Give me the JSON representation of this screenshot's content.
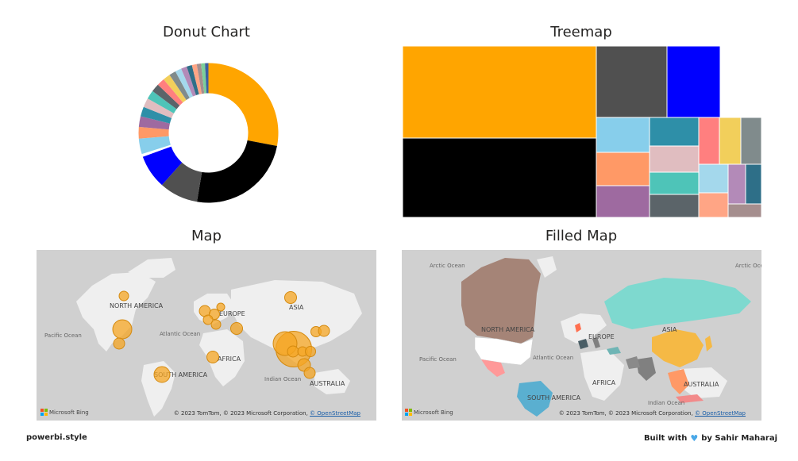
{
  "footer": {
    "left": "powerbi.style",
    "right_prefix": "Built with",
    "right_suffix": "by Sahir Maharaj"
  },
  "icons": {
    "heart": "blue-heart-icon",
    "bing": "microsoft-logo-icon"
  },
  "chart_data": [
    {
      "type": "pie",
      "title": "Donut Chart",
      "donut": true,
      "slices": [
        {
          "value": 25,
          "color": "#FFA500"
        },
        {
          "value": 22,
          "color": "#000000"
        },
        {
          "value": 8,
          "color": "#505050"
        },
        {
          "value": 7,
          "color": "#0000FF"
        },
        {
          "value": 0.6,
          "color": "#FFFFFF"
        },
        {
          "value": 3.2,
          "color": "#87CEEB"
        },
        {
          "value": 2.4,
          "color": "#FF9966"
        },
        {
          "value": 2.2,
          "color": "#9E6AA0"
        },
        {
          "value": 2.0,
          "color": "#2E8FA8"
        },
        {
          "value": 1.9,
          "color": "#E0BDC0"
        },
        {
          "value": 1.8,
          "color": "#4EC4B8"
        },
        {
          "value": 1.7,
          "color": "#5B6469"
        },
        {
          "value": 1.6,
          "color": "#FF7F7F"
        },
        {
          "value": 1.5,
          "color": "#F2CF5B"
        },
        {
          "value": 1.4,
          "color": "#808B8C"
        },
        {
          "value": 1.3,
          "color": "#A4D8EC"
        },
        {
          "value": 1.2,
          "color": "#B38AB8"
        },
        {
          "value": 1.1,
          "color": "#2E6F88"
        },
        {
          "value": 1.0,
          "color": "#FFA585"
        },
        {
          "value": 0.9,
          "color": "#A58E8E"
        },
        {
          "value": 0.8,
          "color": "#7CCF9A"
        },
        {
          "value": 0.7,
          "color": "#3E5F9F"
        }
      ]
    },
    {
      "type": "treemap",
      "title": "Treemap",
      "slices_ref": "same categories as donut chart",
      "values": [
        25,
        22,
        8,
        7,
        3.2,
        2.4,
        2.2,
        2.0,
        1.9,
        1.8,
        1.7,
        1.6,
        1.5,
        1.4,
        1.3,
        1.2,
        1.1,
        1.0,
        0.9
      ],
      "colors": [
        "#FFA500",
        "#000000",
        "#505050",
        "#0000FF",
        "#87CEEB",
        "#FF9966",
        "#9E6AA0",
        "#2E8FA8",
        "#E0BDC0",
        "#4EC4B8",
        "#5B6469",
        "#FF7F7F",
        "#F2CF5B",
        "#808B8C",
        "#A4D8EC",
        "#B38AB8",
        "#2E6F88",
        "#FFA585",
        "#A58E8E"
      ]
    },
    {
      "type": "map",
      "title": "Map",
      "labels": {
        "north_america": "NORTH AMERICA",
        "south_america": "SOUTH AMERICA",
        "europe": "EUROPE",
        "africa": "AFRICA",
        "asia": "ASIA",
        "australia": "AUSTRALIA",
        "pacific": "Pacific Ocean",
        "atlantic": "Atlantic Ocean",
        "indian": "Indian Ocean"
      },
      "bubble_color": "#F5A623",
      "bubble_sizes": [
        12,
        24,
        14,
        14,
        13,
        12,
        12,
        10,
        15,
        45,
        30,
        14,
        12,
        13,
        13,
        14,
        16,
        14,
        15,
        15,
        20
      ]
    },
    {
      "type": "filled-map",
      "title": "Filled Map",
      "labels": {
        "arctic_left": "Arctic Ocean",
        "arctic_right": "Arctic Ocean",
        "north_america": "NORTH AMERICA",
        "south_america": "SOUTH AMERICA",
        "europe": "EUROPE",
        "africa": "AFRICA",
        "asia": "ASIA",
        "australia": "AUSTRALIA",
        "pacific": "Pacific Ocean",
        "atlantic": "Atlantic Ocean",
        "indian": "Indian Ocean"
      },
      "fill_colors": {
        "canada": "#A58477",
        "usa": "#FFFFFF",
        "mexico": "#FF9999",
        "brazil": "#5AAFD0",
        "russia": "#7ED9CF",
        "china": "#F5B945",
        "india": "#808080",
        "seasia": "#FF9966",
        "uk": "#FF6F4F",
        "spain": "#4A5E66",
        "italy": "#808080",
        "turkey": "#6FB5B5",
        "iran": "#8A8A8A",
        "japan": "#F5B945",
        "indonesia": "#F28A8A"
      }
    }
  ],
  "map_credit": {
    "prefix": "© 2023 TomTom, © 2023 Microsoft Corporation,",
    "link": "© OpenStreetMap",
    "bing": "Microsoft Bing"
  }
}
